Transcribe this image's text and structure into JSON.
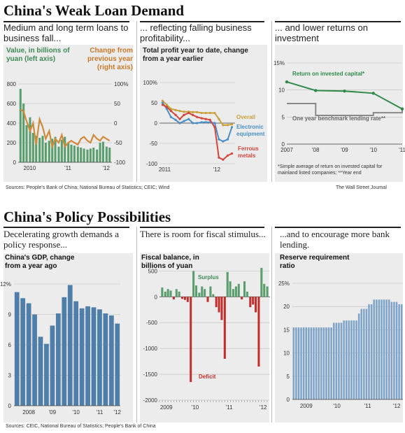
{
  "top": {
    "title": "China's Weak Loan Demand",
    "panel1": {
      "subtitle": "Medium and long term loans to business fall...",
      "left_label": "Value, in billions of yuan (left axis)",
      "right_label": "Change from previous year (right axis)"
    },
    "panel2": {
      "subtitle": "... reflecting falling business profitability...",
      "chart_label": "Total profit year to date, change from a year earlier"
    },
    "panel3": {
      "subtitle": "... and lower returns on investment",
      "footnote": "*Simple average of return on invested capital for mainland listed companies; **Year end"
    },
    "sources": "Sources: People's Bank of China; National Bureau of Statistics; CEIC; Wind",
    "credit": "The Wall Street Journal"
  },
  "bottom": {
    "title": "China's Policy Possibilities",
    "panel1": {
      "subtitle": "Decelerating growth demands a policy response...",
      "chart_label": "China's GDP, change from a year ago"
    },
    "panel2": {
      "subtitle": "There is room for fiscal stimulus...",
      "chart_label": "Fiscal balance, in billions of yuan"
    },
    "panel3": {
      "subtitle": "...and to encourage more bank lending.",
      "chart_label": "Reserve requirement ratio"
    },
    "sources": "Sources: CEIC, National Bureau of Statistics; People's Bank of China"
  },
  "chart_data": [
    {
      "id": "loans",
      "type": "bar+line",
      "title": "Medium and long term loans to business fall...",
      "series": [
        {
          "name": "Value, in billions of yuan (left axis)",
          "type": "bar",
          "color": "#5a9e6e",
          "x": [
            2009.96,
            2010.04,
            2010.12,
            2010.21,
            2010.29,
            2010.37,
            2010.46,
            2010.54,
            2010.62,
            2010.71,
            2010.79,
            2010.87,
            2010.96,
            2011.04,
            2011.12,
            2011.21,
            2011.29,
            2011.37,
            2011.46,
            2011.54,
            2011.62,
            2011.71,
            2011.79,
            2011.87,
            2011.96,
            2012.04,
            2012.12,
            2012.21,
            2012.29
          ],
          "values": [
            750,
            600,
            380,
            460,
            300,
            270,
            250,
            270,
            200,
            220,
            240,
            260,
            160,
            230,
            260,
            200,
            180,
            170,
            160,
            150,
            140,
            130,
            140,
            150,
            130,
            200,
            210,
            160,
            150
          ]
        },
        {
          "name": "Change from previous year (right axis)",
          "type": "line",
          "color": "#d08a3a",
          "x": [
            2009.96,
            2010.04,
            2010.12,
            2010.21,
            2010.29,
            2010.37,
            2010.46,
            2010.54,
            2010.62,
            2010.71,
            2010.79,
            2010.87,
            2010.96,
            2011.04,
            2011.12,
            2011.21,
            2011.29,
            2011.37,
            2011.46,
            2011.54,
            2011.62,
            2011.71,
            2011.79,
            2011.87,
            2011.96,
            2012.04,
            2012.12,
            2012.21,
            2012.29
          ],
          "values": [
            35,
            30,
            5,
            -20,
            0,
            -55,
            10,
            -10,
            -40,
            -20,
            -60,
            -40,
            -50,
            -30,
            -60,
            -50,
            -45,
            -50,
            -55,
            -40,
            -35,
            -45,
            -50,
            -30,
            -40,
            -45,
            -35,
            -40,
            -45
          ]
        }
      ],
      "left_ylim": [
        0,
        800
      ],
      "left_yticks": [
        0,
        200,
        400,
        600,
        800
      ],
      "right_ylim": [
        -100,
        100
      ],
      "right_yticks": [
        "100%",
        "50",
        "0",
        "-50",
        "-100"
      ],
      "xticks": [
        "2010",
        "'11",
        "'12"
      ]
    },
    {
      "id": "profit",
      "type": "line",
      "title": "Total profit year to date, change from a year earlier",
      "series": [
        {
          "name": "Overall",
          "color": "#c8a13a",
          "x": [
            2010.96,
            2011.04,
            2011.12,
            2011.21,
            2011.29,
            2011.37,
            2011.46,
            2011.54,
            2011.62,
            2011.71,
            2011.79,
            2011.87,
            2011.96,
            2012.04,
            2012.12,
            2012.21,
            2012.29
          ],
          "values": [
            55,
            45,
            35,
            32,
            30,
            28,
            28,
            27,
            27,
            25,
            25,
            25,
            25,
            10,
            -5,
            -5,
            -3
          ]
        },
        {
          "name": "Electronic equipment",
          "color": "#4a8fc9",
          "x": [
            2010.96,
            2011.04,
            2011.12,
            2011.21,
            2011.29,
            2011.37,
            2011.46,
            2011.54,
            2011.62,
            2011.71,
            2011.79,
            2011.87,
            2011.96,
            2012.04,
            2012.12,
            2012.21,
            2012.29
          ],
          "values": [
            50,
            35,
            15,
            8,
            0,
            5,
            10,
            0,
            0,
            2,
            2,
            2,
            0,
            -40,
            -45,
            -40,
            -10
          ]
        },
        {
          "name": "Ferrous metals",
          "color": "#d4453c",
          "x": [
            2010.96,
            2011.04,
            2011.12,
            2011.21,
            2011.29,
            2011.37,
            2011.46,
            2011.54,
            2011.62,
            2011.71,
            2011.79,
            2011.87,
            2011.96,
            2012.04,
            2012.12,
            2012.21,
            2012.29
          ],
          "values": [
            45,
            40,
            30,
            20,
            10,
            20,
            25,
            20,
            15,
            12,
            10,
            8,
            -10,
            -85,
            -90,
            -80,
            -75
          ]
        }
      ],
      "ylim": [
        -100,
        100
      ],
      "yticks": [
        "100%",
        "50",
        "0",
        "-50",
        "-100"
      ],
      "xticks": [
        "2011",
        "'12"
      ]
    },
    {
      "id": "returns",
      "type": "line",
      "title": "... and lower returns on investment",
      "series": [
        {
          "name": "Return on invested capital*",
          "color": "#2f8a4a",
          "x": [
            2007,
            2008,
            2009,
            2010,
            2011
          ],
          "values": [
            11.5,
            9.9,
            9.8,
            9.4,
            6.5
          ]
        },
        {
          "name": "One year benchmark lending rate**",
          "type": "step",
          "color": "#888888",
          "x": [
            2007,
            2008,
            2009,
            2010,
            2011
          ],
          "values": [
            7.5,
            5.3,
            5.3,
            5.8,
            6.6
          ]
        }
      ],
      "ylim": [
        0,
        15
      ],
      "yticks": [
        "15%",
        "10",
        "5",
        "0"
      ],
      "xticks": [
        "2007",
        "'08",
        "'09",
        "'10",
        "'11"
      ]
    },
    {
      "id": "gdp",
      "type": "bar",
      "title": "China's GDP, change from a year ago",
      "color": "#4f7fa8",
      "categories": [
        "2007Q4",
        "2008Q1",
        "2008Q2",
        "2008Q3",
        "2008Q4",
        "2009Q1",
        "2009Q2",
        "2009Q3",
        "2009Q4",
        "2010Q1",
        "2010Q2",
        "2010Q3",
        "2010Q4",
        "2011Q1",
        "2011Q2",
        "2011Q3",
        "2011Q4",
        "2012Q1"
      ],
      "values": [
        11.2,
        10.6,
        10.1,
        9.0,
        6.8,
        6.1,
        7.9,
        9.1,
        10.7,
        11.9,
        10.3,
        9.6,
        9.8,
        9.7,
        9.5,
        9.1,
        8.9,
        8.1
      ],
      "ylim": [
        0,
        12
      ],
      "yticks": [
        "12%",
        "9",
        "6",
        "3",
        "0"
      ],
      "xticks": [
        "2008",
        "'09",
        "'10",
        "'11",
        "'12"
      ]
    },
    {
      "id": "fiscal",
      "type": "bar",
      "title": "Fiscal balance, in billions of yuan",
      "pos_label": "Surplus",
      "neg_label": "Deficit",
      "pos_color": "#5a9e6e",
      "neg_color": "#c2302e",
      "x": [
        2009.08,
        2009.17,
        2009.25,
        2009.33,
        2009.42,
        2009.5,
        2009.58,
        2009.67,
        2009.75,
        2009.83,
        2009.92,
        2010.0,
        2010.08,
        2010.17,
        2010.25,
        2010.33,
        2010.42,
        2010.5,
        2010.58,
        2010.67,
        2010.75,
        2010.83,
        2010.92,
        2011.0,
        2011.08,
        2011.17,
        2011.25,
        2011.33,
        2011.42,
        2011.5,
        2011.58,
        2011.67,
        2011.75,
        2011.83,
        2011.92,
        2012.0,
        2012.08,
        2012.17
      ],
      "values": [
        180,
        100,
        150,
        120,
        -50,
        150,
        100,
        -40,
        -60,
        -100,
        -1650,
        500,
        220,
        80,
        200,
        150,
        -100,
        200,
        50,
        -200,
        -300,
        -450,
        -1200,
        480,
        300,
        150,
        200,
        250,
        -50,
        300,
        100,
        -200,
        -150,
        -300,
        -1350,
        560,
        250,
        200
      ],
      "ylim": [
        -2000,
        600
      ],
      "yticks": [
        "500",
        "0",
        "-500",
        "-1000",
        "-1500",
        "-2000"
      ],
      "xticks": [
        "2009",
        "'10",
        "'11",
        "'12"
      ]
    },
    {
      "id": "rrr",
      "type": "bar",
      "title": "Reserve requirement ratio",
      "color": "#7ea3c9",
      "x_start": 2008.75,
      "x_end": 2012.35,
      "steps": [
        {
          "from": 2008.75,
          "value": 15.5
        },
        {
          "from": 2010.05,
          "value": 16.5
        },
        {
          "from": 2010.35,
          "value": 17.0
        },
        {
          "from": 2010.85,
          "value": 18.5
        },
        {
          "from": 2011.0,
          "value": 19.5
        },
        {
          "from": 2011.2,
          "value": 20.5
        },
        {
          "from": 2011.4,
          "value": 21.5
        },
        {
          "from": 2011.92,
          "value": 21.0
        },
        {
          "from": 2012.15,
          "value": 20.5
        }
      ],
      "ylim": [
        0,
        25
      ],
      "yticks": [
        "25%",
        "20",
        "15",
        "10",
        "5",
        "0"
      ],
      "xticks": [
        "2009",
        "'10",
        "'11",
        "'12"
      ]
    }
  ]
}
